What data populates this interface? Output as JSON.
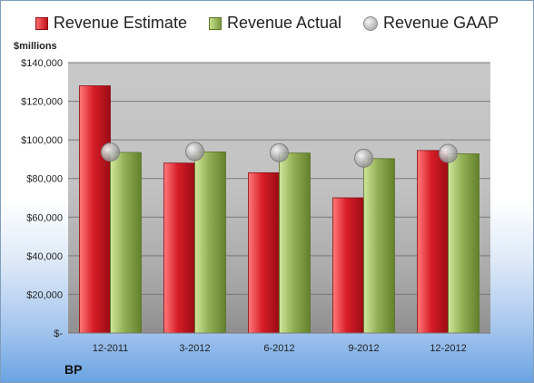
{
  "company": "BP",
  "unit_label": "$millions",
  "legend": [
    {
      "key": "estimate",
      "label": "Revenue Estimate"
    },
    {
      "key": "actual",
      "label": "Revenue Actual"
    },
    {
      "key": "gaap",
      "label": "Revenue GAAP"
    }
  ],
  "colors": {
    "estimate": "#c4111c",
    "actual": "#8fae4f",
    "gaap": "#b0b0b0"
  },
  "chart_data": {
    "type": "bar",
    "categories": [
      "12-2011",
      "3-2012",
      "6-2012",
      "9-2012",
      "12-2012"
    ],
    "series": [
      {
        "name": "Revenue Estimate",
        "values": [
          128000,
          88000,
          83000,
          70000,
          94500
        ]
      },
      {
        "name": "Revenue Actual",
        "values": [
          93500,
          93800,
          93200,
          90300,
          92800
        ]
      },
      {
        "name": "Revenue GAAP",
        "values": [
          93700,
          94000,
          93400,
          90500,
          93000
        ]
      }
    ],
    "ylim": [
      0,
      140000
    ],
    "yticks": [
      0,
      20000,
      40000,
      60000,
      80000,
      100000,
      120000,
      140000
    ],
    "ytick_labels": [
      "$-",
      "$20,000",
      "$40,000",
      "$60,000",
      "$80,000",
      "$100,000",
      "$120,000",
      "$140,000"
    ],
    "grid": true,
    "legend_position": "top"
  }
}
